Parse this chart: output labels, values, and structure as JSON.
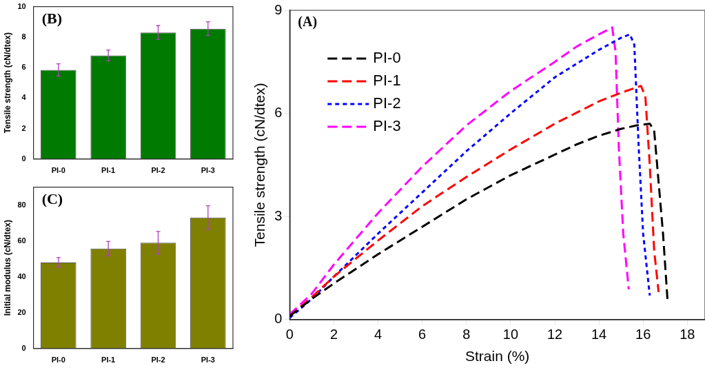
{
  "chart_data": [
    {
      "type": "bar",
      "ylabel": "Tensile strength (cN/dtex)",
      "annotations": [
        "(B)"
      ],
      "categories": [
        "PI-0",
        "PI-1",
        "PI-2",
        "PI-3"
      ],
      "values": [
        5.85,
        6.8,
        8.3,
        8.55
      ],
      "errors": [
        0.4,
        0.35,
        0.45,
        0.45
      ],
      "color": "#007a00",
      "ylim": [
        0,
        10
      ],
      "yticks": [
        0,
        2,
        4,
        6,
        8,
        10
      ],
      "grid": false
    },
    {
      "type": "bar",
      "ylabel": "Initial modulus (cN/dtex)",
      "annotations": [
        "(C)"
      ],
      "categories": [
        "PI-0",
        "PI-1",
        "PI-2",
        "PI-3"
      ],
      "values": [
        48,
        55.7,
        59,
        73
      ],
      "errors": [
        2.7,
        4,
        6.3,
        6.6
      ],
      "color": "#808000",
      "ylim": [
        0,
        90
      ],
      "yticks": [
        0,
        20,
        40,
        60,
        80
      ],
      "grid": false
    },
    {
      "type": "line",
      "xlabel": "Strain (%)",
      "ylabel": "Tensile strength (cN/dtex)",
      "annotations": [
        "(A)"
      ],
      "legend": "top left",
      "grid": false,
      "xlim": [
        0,
        18.8
      ],
      "xticks": [
        0,
        2,
        4,
        6,
        8,
        10,
        12,
        14,
        16,
        18
      ],
      "ylim": [
        0,
        9
      ],
      "yticks": [
        0,
        3,
        6,
        9
      ],
      "series": [
        {
          "name": "PI-0",
          "color": "#000000",
          "line_style": "dashed",
          "x": [
            0,
            1,
            2,
            4,
            6,
            8,
            10,
            12,
            13,
            14,
            15,
            15.7,
            16.3,
            16.5,
            16.7,
            16.9,
            17.1
          ],
          "values": [
            0.1,
            0.6,
            1.05,
            1.9,
            2.7,
            3.5,
            4.2,
            4.8,
            5.1,
            5.35,
            5.55,
            5.65,
            5.7,
            5.5,
            4,
            2.5,
            0.6
          ]
        },
        {
          "name": "PI-1",
          "color": "#ff0000",
          "line_style": "dashed",
          "x": [
            0,
            1,
            2,
            4,
            6,
            8,
            10,
            12,
            14,
            15,
            15.9,
            16.1,
            16.3,
            16.5,
            16.7
          ],
          "values": [
            0.1,
            0.65,
            1.25,
            2.3,
            3.3,
            4.15,
            4.95,
            5.7,
            6.35,
            6.6,
            6.8,
            6.5,
            4.5,
            2,
            0.8
          ]
        },
        {
          "name": "PI-2",
          "color": "#0000ff",
          "line_style": "dotted",
          "x": [
            0,
            1,
            2,
            4,
            6,
            8,
            10,
            12,
            14,
            15,
            15.4,
            15.6,
            15.8,
            16,
            16.3
          ],
          "values": [
            0.05,
            0.6,
            1.25,
            2.5,
            3.7,
            4.9,
            6,
            7.05,
            7.85,
            8.2,
            8.3,
            8,
            5,
            2.5,
            0.7
          ]
        },
        {
          "name": "PI-3",
          "color": "#ff00ff",
          "line_style": "dashed",
          "x": [
            0,
            1,
            2,
            4,
            6,
            8,
            10,
            12,
            13,
            14,
            14.6,
            14.75,
            14.9,
            15.1,
            15.35
          ],
          "values": [
            0.15,
            0.75,
            1.6,
            3.1,
            4.45,
            5.65,
            6.65,
            7.5,
            7.95,
            8.3,
            8.5,
            7.8,
            5,
            2.5,
            0.88
          ]
        }
      ]
    }
  ]
}
